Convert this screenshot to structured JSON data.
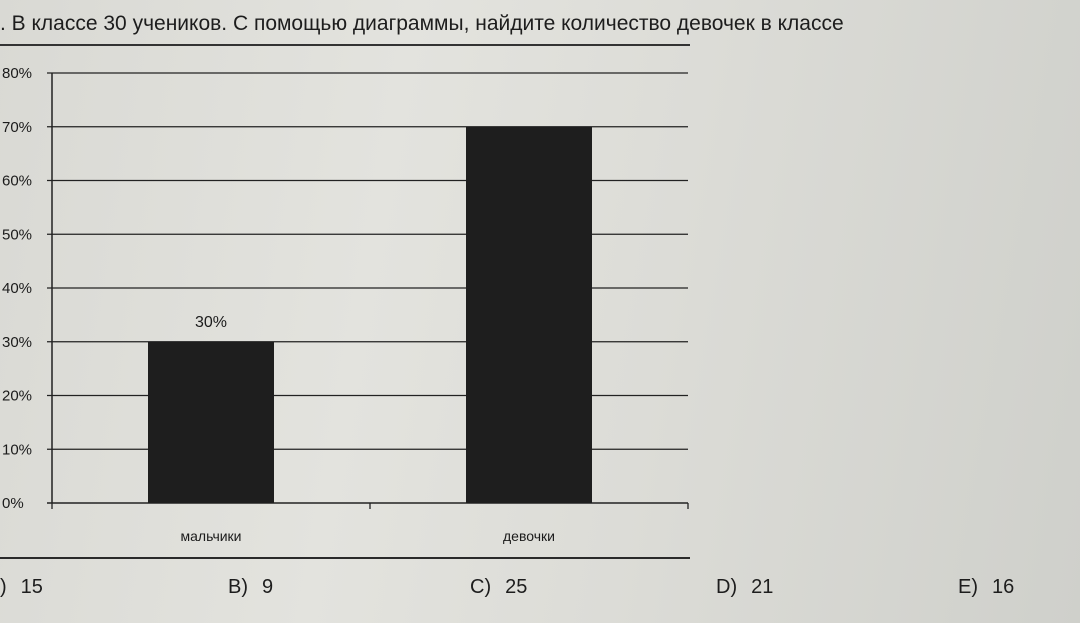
{
  "question": ". В классе 30 учеников. С помощью диаграммы, найдите количество девочек в классе",
  "answers": [
    {
      "letter": ")",
      "value": "15"
    },
    {
      "letter": "B)",
      "value": "9"
    },
    {
      "letter": "C)",
      "value": "25"
    },
    {
      "letter": "D)",
      "value": "21"
    },
    {
      "letter": "E)",
      "value": "16"
    }
  ],
  "chart_data": {
    "type": "bar",
    "categories": [
      "мальчики",
      "девочки"
    ],
    "values": [
      30,
      70
    ],
    "data_labels": [
      "30%",
      ""
    ],
    "yticks": [
      "0%",
      "10%",
      "20%",
      "30%",
      "40%",
      "50%",
      "60%",
      "70%",
      "80%"
    ],
    "ylim": [
      0,
      80
    ],
    "grid": true,
    "bar_color": "#1e1e1e"
  }
}
